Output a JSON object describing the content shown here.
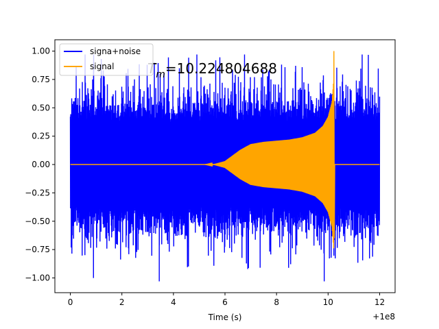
{
  "chart_data": {
    "type": "line",
    "title": "",
    "xlabel": "Time (s)",
    "ylabel": "",
    "x_offset_label": "+1e8",
    "xlim": [
      -0.6,
      12.6
    ],
    "ylim": [
      -1.13,
      1.1
    ],
    "x_ticks": [
      0,
      2,
      4,
      6,
      8,
      10,
      12
    ],
    "x_tick_labels": [
      "0",
      "2",
      "4",
      "6",
      "8",
      "10",
      "12"
    ],
    "y_ticks": [
      -1.0,
      -0.75,
      -0.5,
      -0.25,
      0.0,
      0.25,
      0.5,
      0.75,
      1.0
    ],
    "y_tick_labels": [
      "−1.00",
      "−0.75",
      "−0.50",
      "−0.25",
      "0.00",
      "0.25",
      "0.50",
      "0.75",
      "1.00"
    ],
    "grid": false,
    "legend_position": "top-left",
    "annotation": "T_m=10.224804688",
    "annotation_parts": {
      "base": "T",
      "sub": "m",
      "rest": "=10.224804688"
    },
    "series": [
      {
        "name": "signa+noise",
        "color": "#0000ff",
        "x_range": [
          0,
          12
        ],
        "typical_amplitude": 0.5,
        "peak_max": 0.97,
        "peak_min": -1.03,
        "seed": 7
      },
      {
        "name": "signal",
        "color": "#ffa500",
        "envelope": [
          [
            0.0,
            0.0
          ],
          [
            5.2,
            0.0
          ],
          [
            5.6,
            0.005
          ],
          [
            6.0,
            0.03
          ],
          [
            6.3,
            0.08
          ],
          [
            6.6,
            0.13
          ],
          [
            7.0,
            0.18
          ],
          [
            7.5,
            0.2
          ],
          [
            8.0,
            0.21
          ],
          [
            8.5,
            0.22
          ],
          [
            9.0,
            0.24
          ],
          [
            9.5,
            0.28
          ],
          [
            9.8,
            0.34
          ],
          [
            10.0,
            0.42
          ],
          [
            10.15,
            0.55
          ],
          [
            10.22,
            0.75
          ],
          [
            10.23,
            0.0
          ],
          [
            12.0,
            0.0
          ]
        ],
        "spike": {
          "x": 10.2248,
          "top": 1.0,
          "bottom": -0.65
        }
      }
    ]
  }
}
